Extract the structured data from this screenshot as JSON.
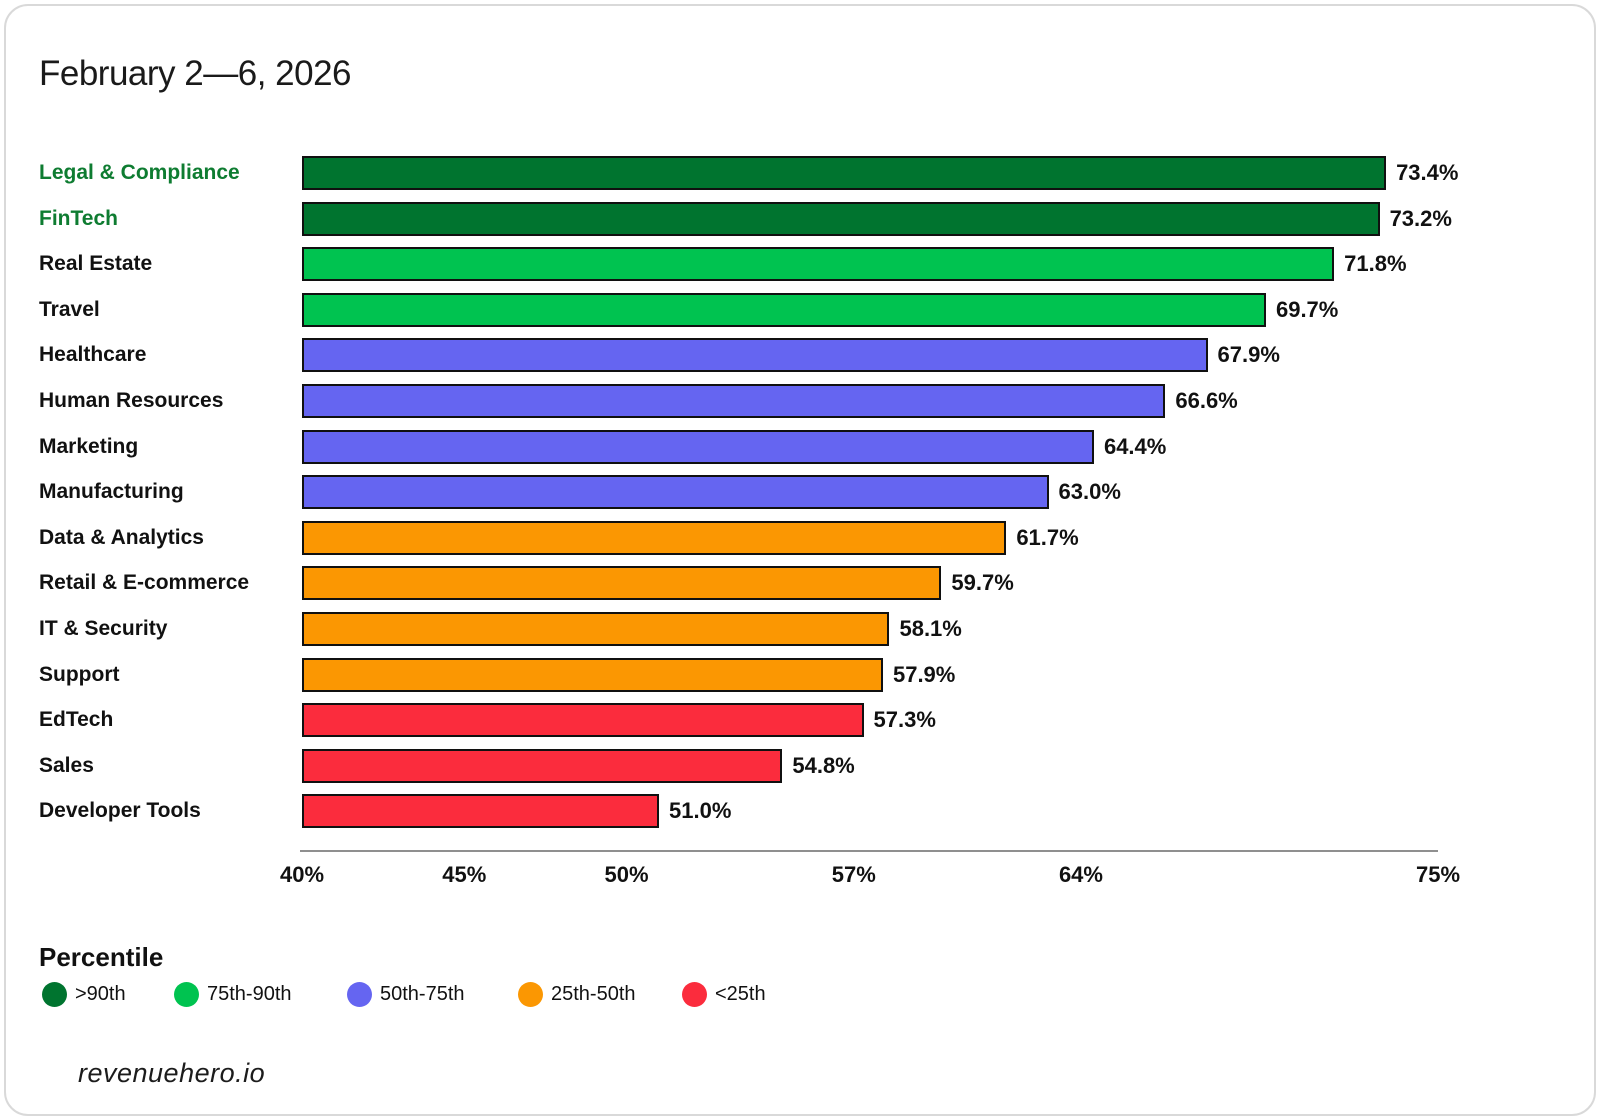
{
  "title": "February 2—6, 2026",
  "footer": {
    "brand": "revenuehero.io"
  },
  "legend": {
    "title": "Percentile",
    "items": [
      {
        "label": ">90th",
        "color": "#00742F"
      },
      {
        "label": "75th-90th",
        "color": "#00C350"
      },
      {
        "label": "50th-75th",
        "color": "#6565F1"
      },
      {
        "label": "25th-50th",
        "color": "#FB9702"
      },
      {
        "label": "<25th",
        "color": "#FB2C3D"
      }
    ]
  },
  "chart_data": {
    "type": "bar",
    "orientation": "horizontal",
    "title": "February 2—6, 2026",
    "xlabel": "",
    "ylabel": "",
    "xlim": [
      40,
      75
    ],
    "grid": false,
    "legend_position": "bottom-left",
    "x_ticks": [
      40,
      45,
      50,
      57,
      64,
      75
    ],
    "x_tick_labels": [
      "40%",
      "45%",
      "50%",
      "57%",
      "64%",
      "75%"
    ],
    "categories": [
      "Legal & Compliance",
      "FinTech",
      "Real Estate",
      "Travel",
      "Healthcare",
      "Human Resources",
      "Marketing",
      "Manufacturing",
      "Data & Analytics",
      "Retail & E-commerce",
      "IT & Security",
      "Support",
      "EdTech",
      "Sales",
      "Developer Tools"
    ],
    "values": [
      73.4,
      73.2,
      71.8,
      69.7,
      67.9,
      66.6,
      64.4,
      63.0,
      61.7,
      59.7,
      58.1,
      57.9,
      57.3,
      54.8,
      51.0
    ],
    "bars": [
      {
        "category": "Legal & Compliance",
        "value": 73.4,
        "label": "73.4%",
        "percentile_bucket": ">90th",
        "color": "#00742F",
        "label_color": "#0E7C31"
      },
      {
        "category": "FinTech",
        "value": 73.2,
        "label": "73.2%",
        "percentile_bucket": ">90th",
        "color": "#00742F",
        "label_color": "#0E7C31"
      },
      {
        "category": "Real Estate",
        "value": 71.8,
        "label": "71.8%",
        "percentile_bucket": "75th-90th",
        "color": "#00C350",
        "label_color": "#111111"
      },
      {
        "category": "Travel",
        "value": 69.7,
        "label": "69.7%",
        "percentile_bucket": "75th-90th",
        "color": "#00C350",
        "label_color": "#111111"
      },
      {
        "category": "Healthcare",
        "value": 67.9,
        "label": "67.9%",
        "percentile_bucket": "50th-75th",
        "color": "#6565F1",
        "label_color": "#111111"
      },
      {
        "category": "Human Resources",
        "value": 66.6,
        "label": "66.6%",
        "percentile_bucket": "50th-75th",
        "color": "#6565F1",
        "label_color": "#111111"
      },
      {
        "category": "Marketing",
        "value": 64.4,
        "label": "64.4%",
        "percentile_bucket": "50th-75th",
        "color": "#6565F1",
        "label_color": "#111111"
      },
      {
        "category": "Manufacturing",
        "value": 63.0,
        "label": "63.0%",
        "percentile_bucket": "50th-75th",
        "color": "#6565F1",
        "label_color": "#111111"
      },
      {
        "category": "Data & Analytics",
        "value": 61.7,
        "label": "61.7%",
        "percentile_bucket": "25th-50th",
        "color": "#FB9702",
        "label_color": "#111111"
      },
      {
        "category": "Retail & E-commerce",
        "value": 59.7,
        "label": "59.7%",
        "percentile_bucket": "25th-50th",
        "color": "#FB9702",
        "label_color": "#111111"
      },
      {
        "category": "IT & Security",
        "value": 58.1,
        "label": "58.1%",
        "percentile_bucket": "25th-50th",
        "color": "#FB9702",
        "label_color": "#111111"
      },
      {
        "category": "Support",
        "value": 57.9,
        "label": "57.9%",
        "percentile_bucket": "25th-50th",
        "color": "#FB9702",
        "label_color": "#111111"
      },
      {
        "category": "EdTech",
        "value": 57.3,
        "label": "57.3%",
        "percentile_bucket": "<25th",
        "color": "#FB2C3D",
        "label_color": "#111111"
      },
      {
        "category": "Sales",
        "value": 54.8,
        "label": "54.8%",
        "percentile_bucket": "<25th",
        "color": "#FB2C3D",
        "label_color": "#111111"
      },
      {
        "category": "Developer Tools",
        "value": 51.0,
        "label": "51.0%",
        "percentile_bucket": "<25th",
        "color": "#FB2C3D",
        "label_color": "#111111"
      }
    ]
  }
}
